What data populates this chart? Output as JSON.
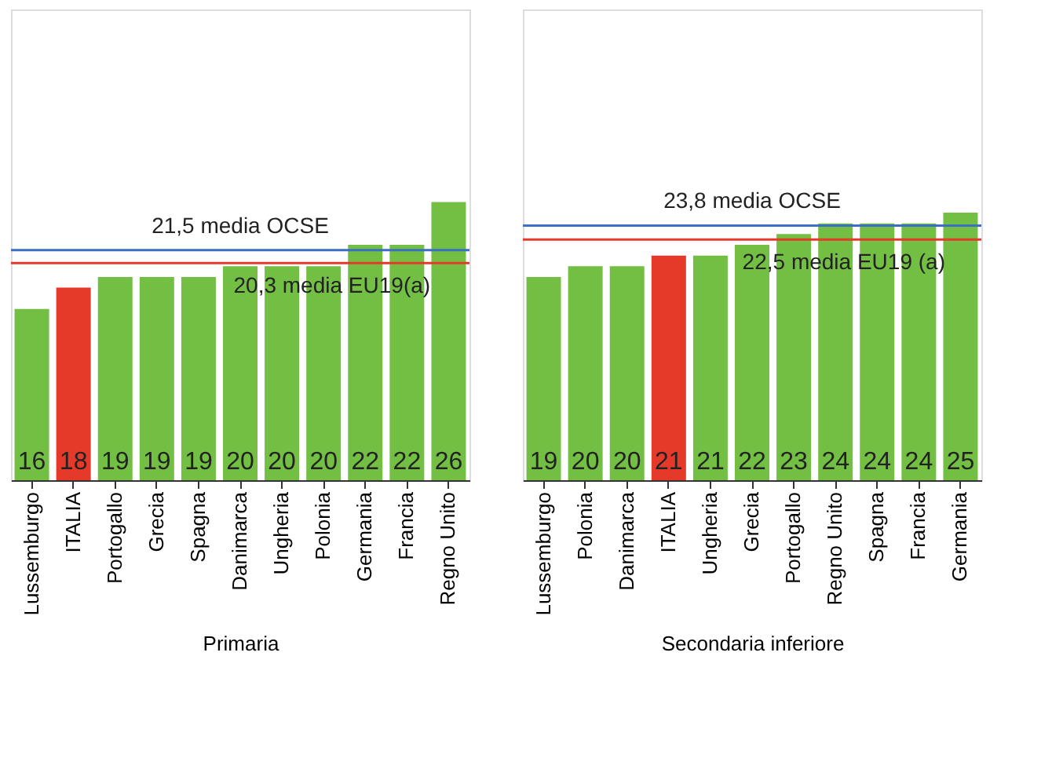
{
  "chart_data": [
    {
      "type": "bar",
      "xlabel": "Primaria",
      "categories": [
        "Lussemburgo",
        "ITALIA",
        "Portogallo",
        "Grecia",
        "Spagna",
        "Danimarca",
        "Ungheria",
        "Polonia",
        "Germania",
        "Francia",
        "Regno Unito"
      ],
      "values": [
        16,
        18,
        19,
        19,
        19,
        20,
        20,
        20,
        22,
        22,
        26
      ],
      "colors": [
        "#72bf44",
        "#e53a2a",
        "#72bf44",
        "#72bf44",
        "#72bf44",
        "#72bf44",
        "#72bf44",
        "#72bf44",
        "#72bf44",
        "#72bf44",
        "#72bf44"
      ],
      "ylim": [
        0,
        44
      ],
      "tick_labels": "x",
      "data_labels": true,
      "grid": false,
      "ref_lines": [
        {
          "axis": "y",
          "value": 21.5,
          "label": "21,5 media OCSE",
          "color": "#3a6fc4"
        },
        {
          "axis": "y",
          "value": 20.3,
          "label": "20,3 media EU19(a)",
          "color": "#e53a2a"
        }
      ]
    },
    {
      "type": "bar",
      "xlabel": "Secondaria inferiore",
      "categories": [
        "Lussemburgo",
        "Polonia",
        "Danimarca",
        "ITALIA",
        "Ungheria",
        "Grecia",
        "Portogallo",
        "Regno Unito",
        "Spagna",
        "Francia",
        "Germania"
      ],
      "values": [
        19,
        20,
        20,
        21,
        21,
        22,
        23,
        24,
        24,
        24,
        25
      ],
      "colors": [
        "#72bf44",
        "#72bf44",
        "#72bf44",
        "#e53a2a",
        "#72bf44",
        "#72bf44",
        "#72bf44",
        "#72bf44",
        "#72bf44",
        "#72bf44",
        "#72bf44"
      ],
      "ylim": [
        0,
        44
      ],
      "tick_labels": "x",
      "data_labels": true,
      "grid": false,
      "ref_lines": [
        {
          "axis": "y",
          "value": 23.8,
          "label": "23,8 media OCSE",
          "color": "#3a6fc4"
        },
        {
          "axis": "y",
          "value": 22.5,
          "label": "22,5 media EU19 (a)",
          "color": "#e53a2a"
        }
      ]
    }
  ]
}
